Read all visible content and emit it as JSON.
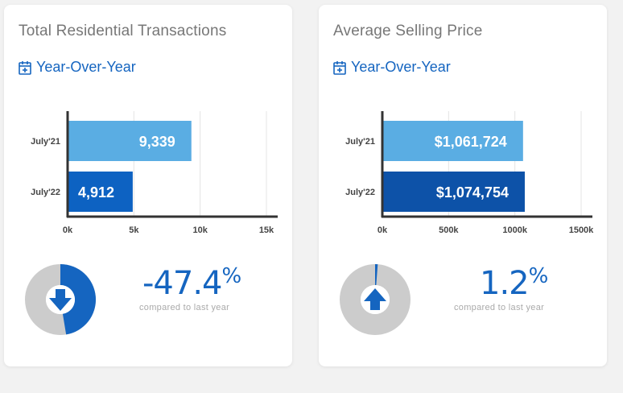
{
  "cards": [
    {
      "title": "Total Residential Transactions",
      "period_label": "Year-Over-Year",
      "change_value": "-47.4",
      "change_sign": "%",
      "caption": "compared to last year",
      "indicator": "down-arrow-icon",
      "change_fraction": 0.474,
      "chart_data": {
        "type": "bar",
        "orientation": "horizontal",
        "categories": [
          "July'21",
          "July'22"
        ],
        "values": [
          9339,
          4912
        ],
        "value_labels": [
          "9,339",
          "4,912"
        ],
        "xlim": [
          0,
          15000
        ],
        "ticks": [
          0,
          5000,
          10000,
          15000
        ],
        "tick_labels": [
          "0k",
          "5k",
          "10k",
          "15k"
        ],
        "colors": [
          "#5aade3",
          "#0d62c2"
        ],
        "grid": true
      }
    },
    {
      "title": "Average Selling Price",
      "period_label": "Year-Over-Year",
      "change_value": "1.2",
      "change_sign": "%",
      "caption": "compared to last year",
      "indicator": "up-arrow-icon",
      "change_fraction": 0.012,
      "chart_data": {
        "type": "bar",
        "orientation": "horizontal",
        "categories": [
          "July'21",
          "July'22"
        ],
        "values": [
          1061724,
          1074754
        ],
        "value_labels": [
          "$1,061,724",
          "$1,074,754"
        ],
        "xlim": [
          0,
          1500000
        ],
        "ticks": [
          0,
          500000,
          1000000,
          1500000
        ],
        "tick_labels": [
          "0k",
          "500k",
          "1000k",
          "1500k"
        ],
        "colors": [
          "#5aade3",
          "#0d52a8"
        ],
        "grid": true
      }
    }
  ],
  "colors": {
    "accent": "#1565c0",
    "donut_track": "#cccccc"
  }
}
